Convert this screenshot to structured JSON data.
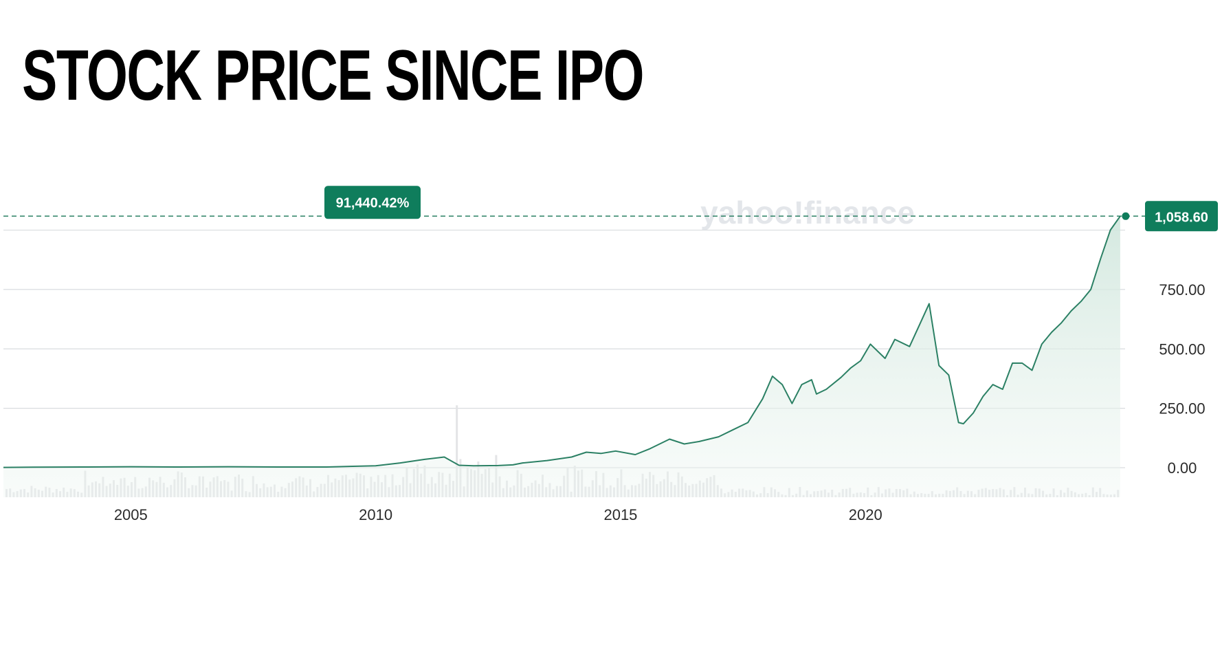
{
  "title": "STOCK PRICE SINCE IPO",
  "watermark": "yahoo!finance",
  "colors": {
    "line": "#2b8064",
    "badge": "#0f7d5c",
    "grid": "#d9dcdf",
    "volume": "#e3e4e6"
  },
  "chart_data": {
    "type": "area",
    "x_axis": {
      "range": [
        2002.4,
        2025.3
      ],
      "ticks": [
        "2005",
        "2010",
        "2015",
        "2020"
      ]
    },
    "y_axis": {
      "range": [
        0,
        1100
      ],
      "ticks": [
        "0.00",
        "250.00",
        "500.00",
        "750.00"
      ]
    },
    "grid": true,
    "current_value_label": "1,058.60",
    "percent_change_label": "91,440.42%",
    "series": [
      {
        "x": [
          2002.4,
          2003.0,
          2004.0,
          2005.0,
          2006.0,
          2007.0,
          2008.0,
          2009.0,
          2010.0,
          2010.5,
          2011.0,
          2011.4,
          2011.7,
          2012.0,
          2012.5,
          2012.8,
          2013.0,
          2013.5,
          2014.0,
          2014.3,
          2014.6,
          2014.9,
          2015.3,
          2015.6,
          2016.0,
          2016.3,
          2016.6,
          2017.0,
          2017.3,
          2017.6,
          2017.9,
          2018.1,
          2018.3,
          2018.5,
          2018.7,
          2018.9,
          2019.0,
          2019.2,
          2019.5,
          2019.7,
          2019.9,
          2020.1,
          2020.4,
          2020.6,
          2020.9,
          2021.1,
          2021.3,
          2021.5,
          2021.7,
          2021.9,
          2022.0,
          2022.2,
          2022.4,
          2022.6,
          2022.8,
          2023.0,
          2023.2,
          2023.4,
          2023.6,
          2023.8,
          2024.0,
          2024.2,
          2024.4,
          2024.6,
          2024.8,
          2025.0,
          2025.2
        ],
        "y": [
          1.15,
          2,
          3,
          4,
          3,
          4,
          3,
          3,
          8,
          20,
          35,
          45,
          10,
          8,
          9,
          12,
          20,
          30,
          45,
          65,
          60,
          70,
          55,
          80,
          120,
          100,
          110,
          130,
          160,
          190,
          290,
          385,
          350,
          270,
          350,
          370,
          310,
          330,
          380,
          420,
          450,
          520,
          460,
          540,
          510,
          600,
          690,
          430,
          390,
          190,
          185,
          230,
          300,
          350,
          330,
          440,
          440,
          410,
          520,
          570,
          610,
          660,
          700,
          750,
          880,
          1000,
          1058.6
        ]
      }
    ]
  }
}
